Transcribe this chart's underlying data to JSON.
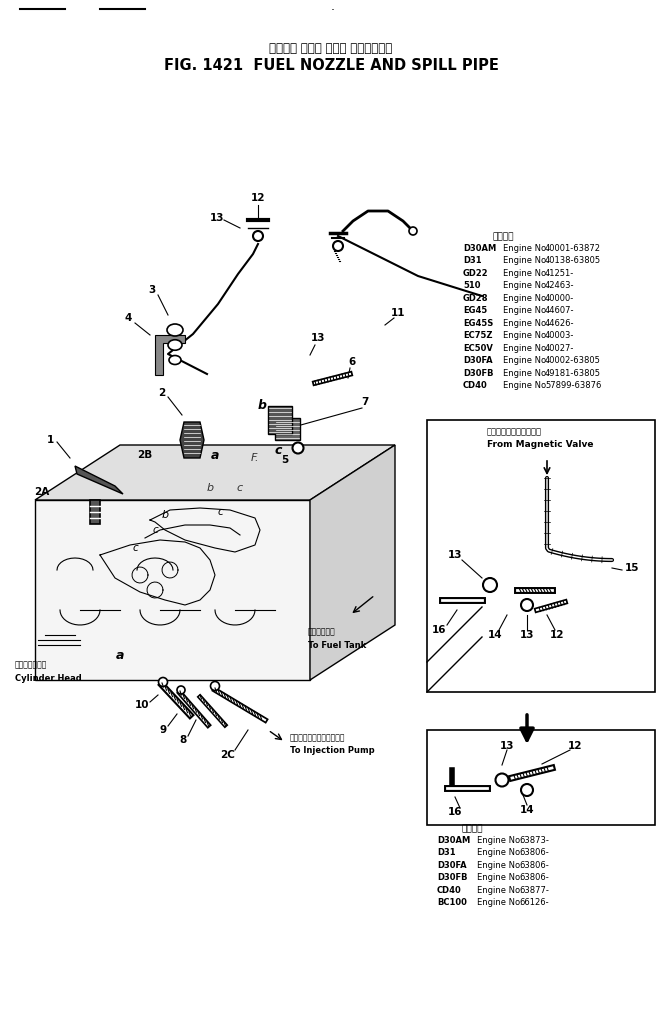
{
  "title_jp": "フェエル ノズル および スピルパイプ",
  "title_en": "FIG. 1421  FUEL NOZZLE AND SPILL PIPE",
  "bg_color": "#ffffff",
  "text_color": "#000000",
  "table1_header": "適用号機",
  "table1_rows": [
    [
      "D30AM",
      "Engine No.",
      "40001-63872"
    ],
    [
      "D31",
      "Engine No.",
      "40138-63805"
    ],
    [
      "GD22",
      "Engine No.",
      "41251-"
    ],
    [
      "510",
      "Engine No.",
      "42463-"
    ],
    [
      "GD28",
      "Engine No.",
      "40000-"
    ],
    [
      "EG45",
      "Engine No.",
      "44607-"
    ],
    [
      "EG45S",
      "Engine No.",
      "44626-"
    ],
    [
      "EC75Z",
      "Engine No.",
      "40003-"
    ],
    [
      "EC50V",
      "Engine No.",
      "40027-"
    ],
    [
      "D30FA",
      "Engine No.",
      "40002-63805"
    ],
    [
      "D30FB",
      "Engine No.",
      "49181-63805"
    ],
    [
      "CD40",
      "Engine No.",
      "57899-63876"
    ]
  ],
  "table2_header": "適用号機",
  "table2_rows": [
    [
      "D30AM",
      "Engine No.",
      "63873-"
    ],
    [
      "D31",
      "Engine No.",
      "63806-"
    ],
    [
      "D30FA",
      "Engine No.",
      "63806-"
    ],
    [
      "D30FB",
      "Engine No.",
      "63806-"
    ],
    [
      "CD40",
      "Engine No.",
      "63877-"
    ],
    [
      "BC100",
      "Engine No.",
      "66126-"
    ]
  ],
  "label_magnetic_jp": "マグネチックバルブから",
  "label_magnetic_en": "From Magnetic Valve",
  "label_fuel_tank_jp": "燃料タンクへ",
  "label_fuel_tank_en": "To Fuel Tank",
  "label_injection_jp": "インジェクションポンプへ",
  "label_injection_en": "To Injection Pump",
  "label_cylinder_jp": "シリンダヘッド",
  "label_cylinder_en": "Cylinder Head"
}
